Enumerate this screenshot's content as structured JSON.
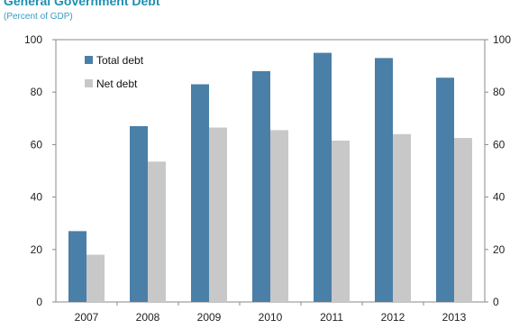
{
  "chart_data": {
    "type": "bar",
    "title": "General Government Debt",
    "subtitle": "(Percent of GDP)",
    "categories": [
      "2007",
      "2008",
      "2009",
      "2010",
      "2011",
      "2012",
      "2013"
    ],
    "series": [
      {
        "name": "Total debt",
        "values": [
          27,
          67,
          83,
          88,
          95,
          93,
          85.5
        ],
        "color": "#4a7fa8"
      },
      {
        "name": "Net debt",
        "values": [
          18,
          53.5,
          66.5,
          65.5,
          61.5,
          64,
          62.5
        ],
        "color": "#c8c8c8"
      }
    ],
    "ylim": [
      0,
      100
    ],
    "yticks": [
      "0",
      "20",
      "40",
      "60",
      "80",
      "100"
    ],
    "yticks_right": [
      "0",
      "20",
      "40",
      "60",
      "80",
      "100"
    ],
    "legend_position": "top-left",
    "grid": false
  }
}
